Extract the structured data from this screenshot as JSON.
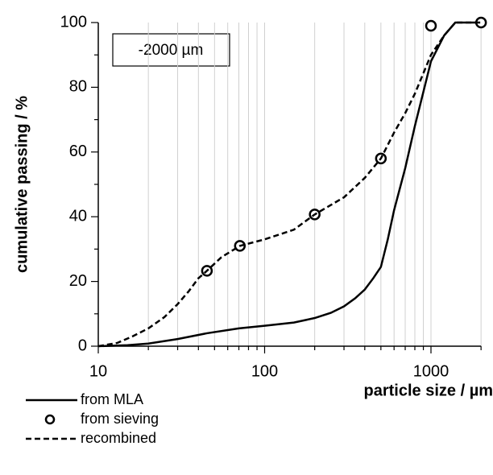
{
  "chart_data": {
    "type": "line",
    "annotation": "-2000 µm",
    "x_label": "particle size / µm",
    "y_label": "cumulative passing / %",
    "xlim": [
      10,
      2000
    ],
    "xscale": "log",
    "xticks": [
      10,
      100,
      1000
    ],
    "xminorticks": [
      20,
      30,
      40,
      50,
      60,
      70,
      80,
      90,
      200,
      300,
      400,
      500,
      600,
      700,
      800,
      900,
      2000
    ],
    "ylim": [
      0,
      100
    ],
    "yticks": [
      0,
      20,
      40,
      60,
      80,
      100
    ],
    "yminorticks": [
      10,
      30,
      50,
      70,
      90
    ],
    "grid": "x-minor",
    "legend": "bottom-left",
    "series": [
      {
        "name": "from MLA",
        "style": "solid",
        "color": "#000000",
        "x": [
          10,
          15,
          20,
          30,
          45,
          70,
          100,
          150,
          200,
          250,
          300,
          350,
          400,
          450,
          500,
          550,
          600,
          700,
          800,
          1000,
          1200,
          1400,
          2000
        ],
        "values": [
          0,
          0.3,
          0.8,
          2.2,
          4,
          5.5,
          6.3,
          7.3,
          8.7,
          10.3,
          12.3,
          14.8,
          17.5,
          21,
          24.5,
          33,
          42,
          55,
          68,
          88,
          96,
          100,
          100
        ]
      },
      {
        "name": "from sieving",
        "style": "marker",
        "color": "#000000",
        "x": [
          45,
          71,
          200,
          500,
          1000,
          2000
        ],
        "values": [
          23.3,
          31,
          40.7,
          58,
          99,
          100
        ]
      },
      {
        "name": "recombined",
        "style": "dashed",
        "color": "#000000",
        "x": [
          10,
          13,
          16,
          20,
          25,
          30,
          35,
          40,
          45,
          55,
          71,
          100,
          150,
          200,
          300,
          400,
          500,
          600,
          700,
          800,
          1000,
          1200,
          1400,
          2000
        ],
        "values": [
          0,
          1,
          3,
          5.5,
          9,
          13,
          17,
          21,
          23.3,
          27.5,
          31,
          33,
          36,
          40.7,
          46,
          52,
          58,
          66,
          72,
          78,
          90,
          96,
          100,
          100
        ]
      }
    ]
  }
}
